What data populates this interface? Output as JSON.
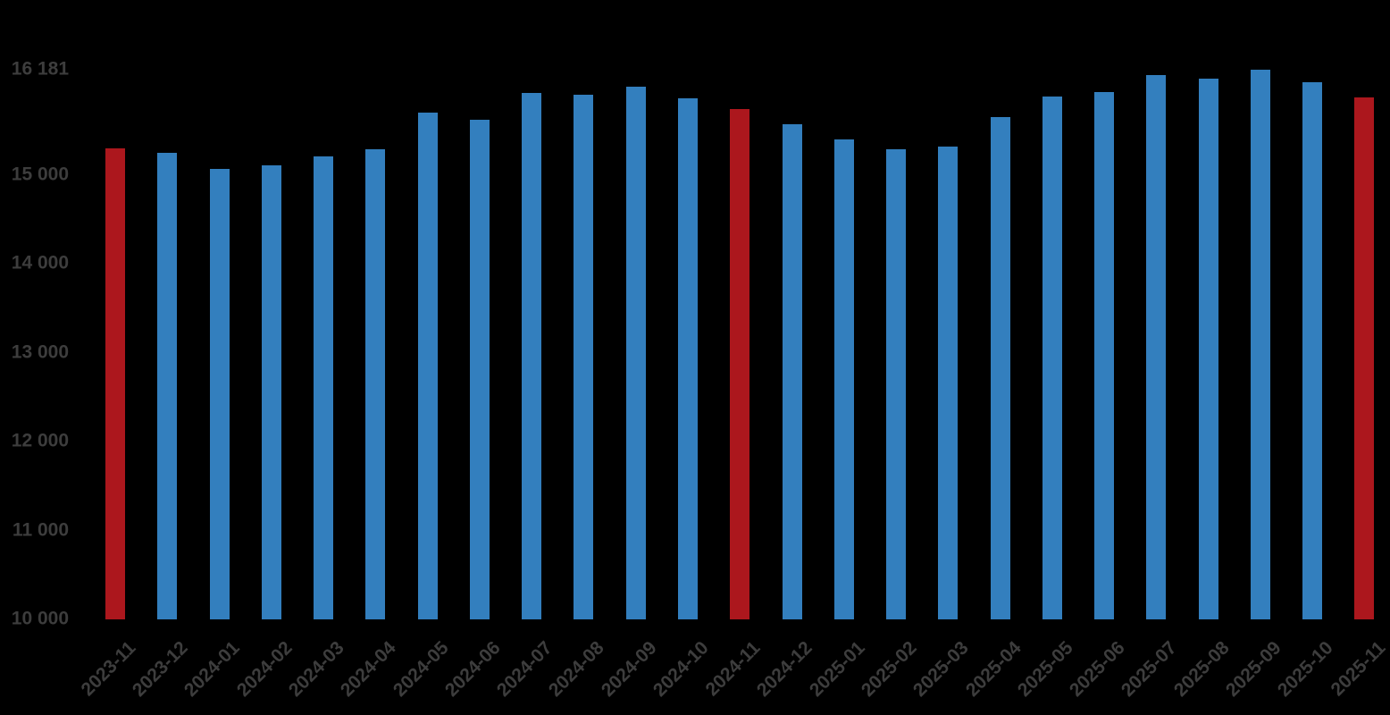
{
  "chart_data": {
    "type": "bar",
    "title": "",
    "xlabel": "",
    "ylabel": "",
    "categories": [
      "2023-11",
      "2023-12",
      "2024-01",
      "2024-02",
      "2024-03",
      "2024-04",
      "2024-05",
      "2024-06",
      "2024-07",
      "2024-08",
      "2024-09",
      "2024-10",
      "2024-11",
      "2024-12",
      "2025-01",
      "2025-02",
      "2025-03",
      "2025-04",
      "2025-05",
      "2025-06",
      "2025-07",
      "2025-08",
      "2025-09",
      "2025-10",
      "2025-11"
    ],
    "values": [
      15300,
      15250,
      15070,
      15110,
      15210,
      15290,
      15700,
      15620,
      15920,
      15900,
      15990,
      15860,
      15740,
      15570,
      15400,
      15290,
      15320,
      15650,
      15880,
      15930,
      16120,
      16080,
      16181,
      16040,
      15870
    ],
    "highlighted_categories": [
      "2023-11",
      "2024-11",
      "2025-11"
    ],
    "max_value": 16181,
    "y_ticks": [
      {
        "value": 10000,
        "label": "10 000"
      },
      {
        "value": 11000,
        "label": "11 000"
      },
      {
        "value": 12000,
        "label": "12 000"
      },
      {
        "value": 13000,
        "label": "13 000"
      },
      {
        "value": 14000,
        "label": "14 000"
      },
      {
        "value": 15000,
        "label": "15 000"
      },
      {
        "value": 16181,
        "label": "16 181"
      }
    ],
    "ylim": [
      10000,
      16181
    ],
    "grid": false,
    "legend": false,
    "x_tick_rotation_deg": 45,
    "colors": {
      "bar": "#337fbe",
      "bar_highlight": "#ac171d",
      "text": "#3d3d3d",
      "background": "#000000"
    }
  }
}
